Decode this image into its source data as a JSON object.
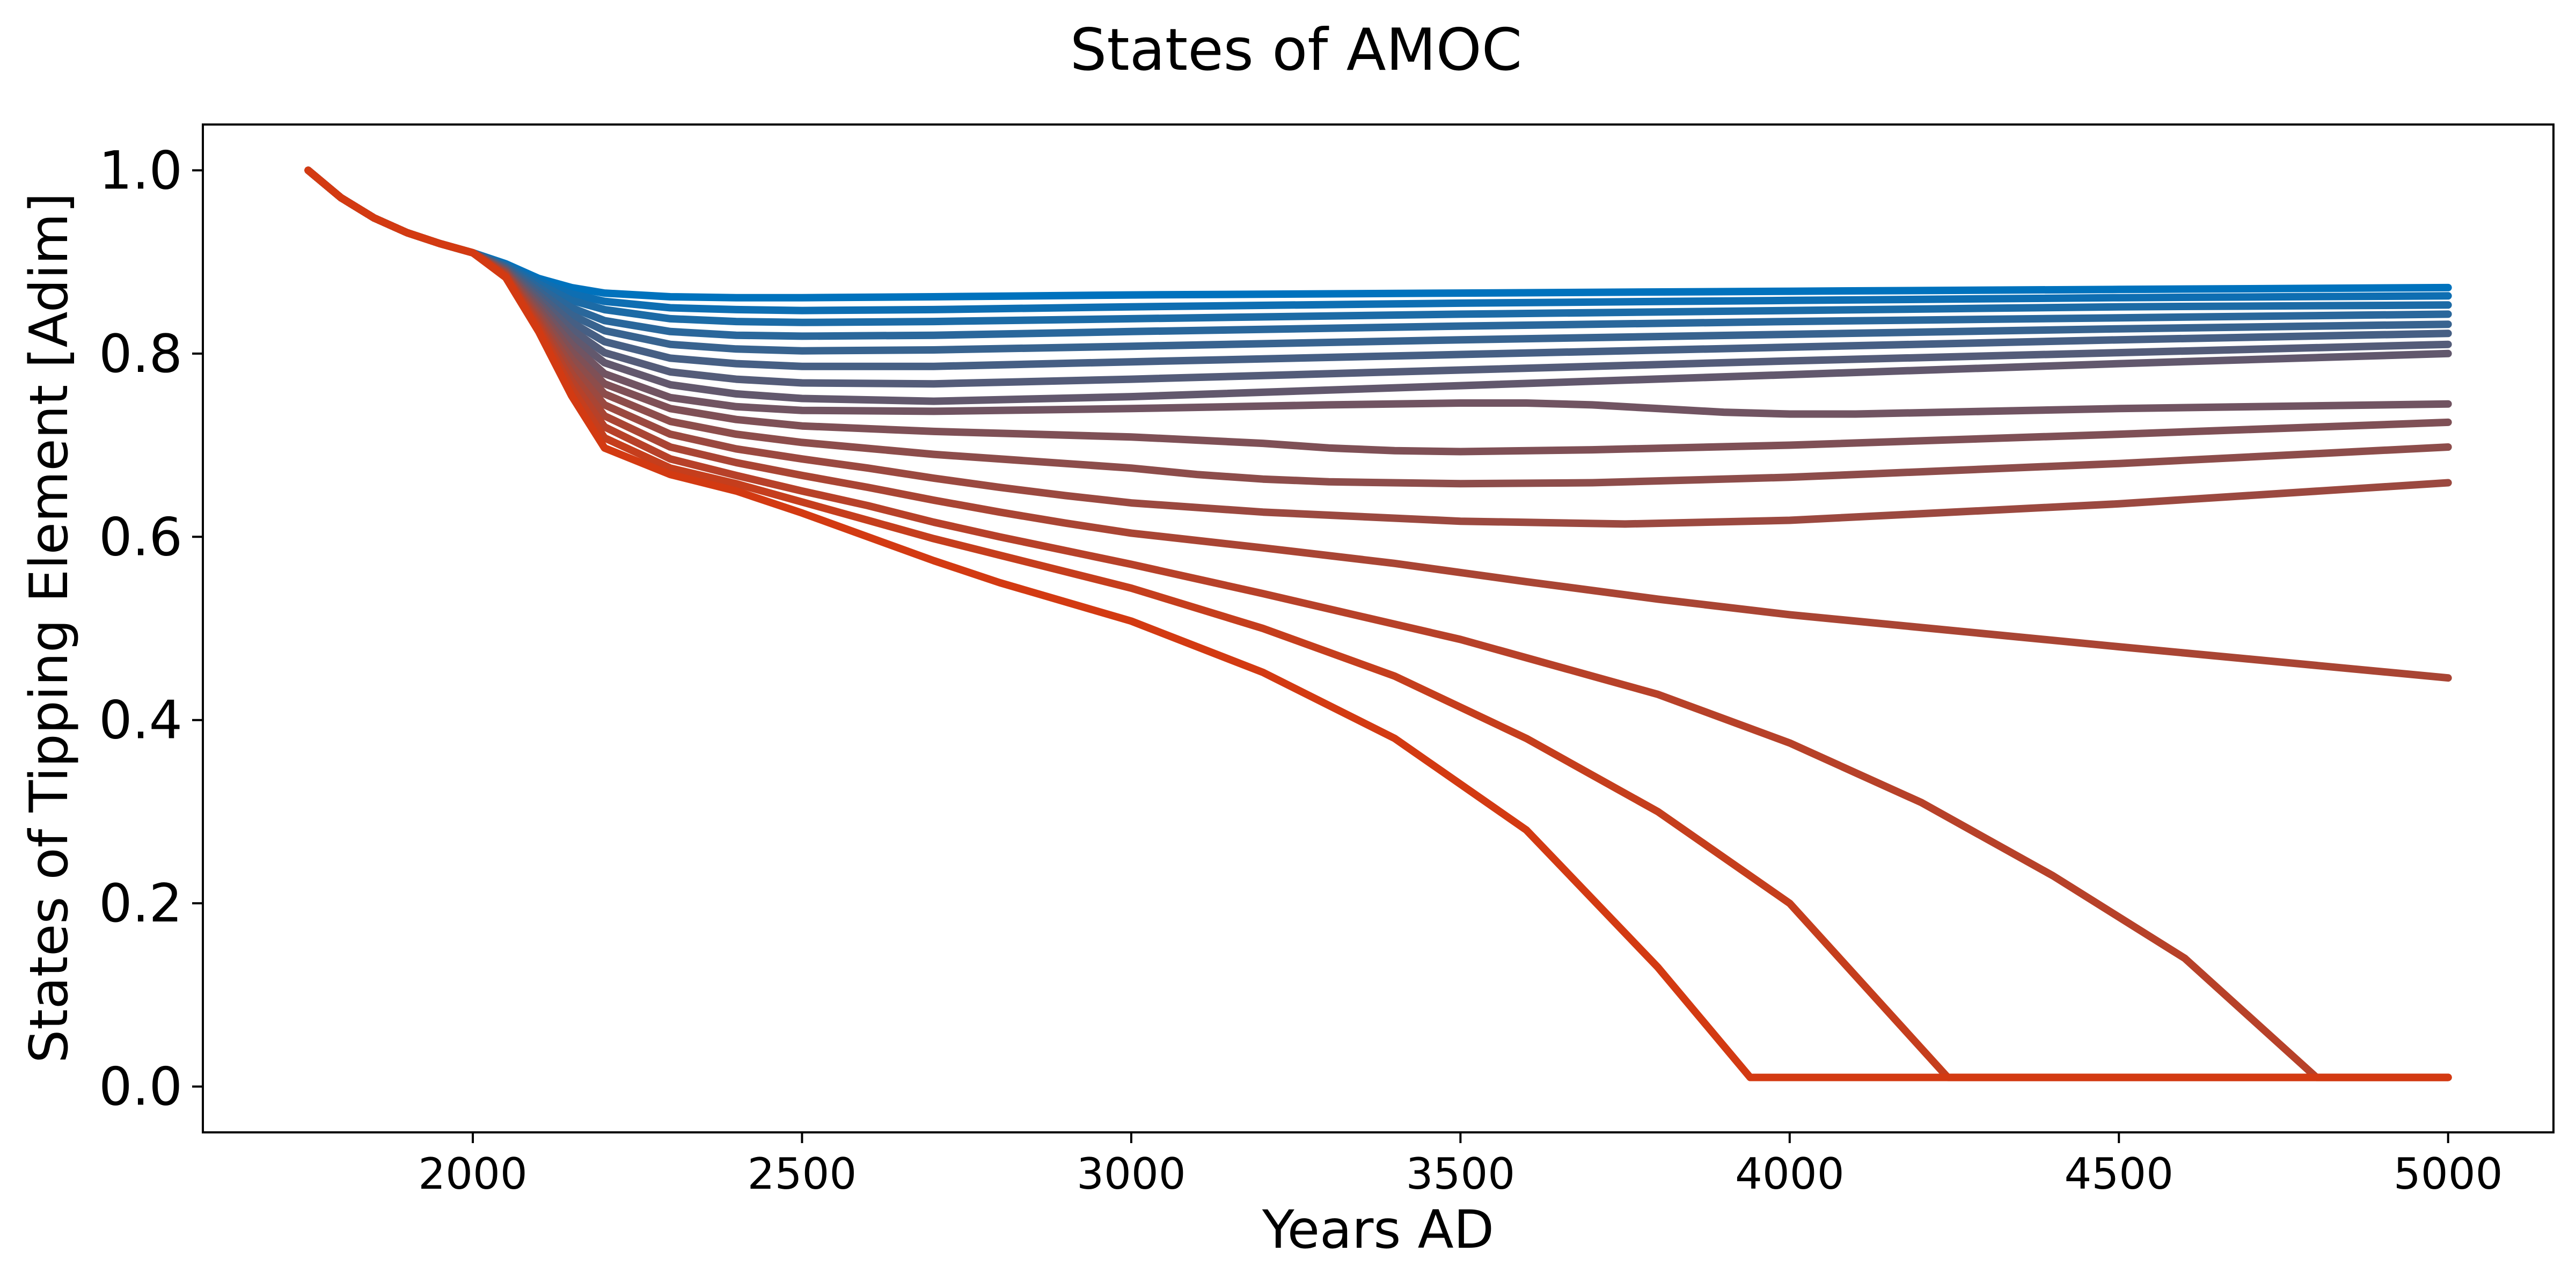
{
  "chart_data": {
    "type": "line",
    "title": "States of AMOC",
    "xlabel": "Years AD",
    "ylabel": "States of Tipping Element [Adim]",
    "xlim": [
      1590,
      5160
    ],
    "ylim": [
      -0.05,
      1.05
    ],
    "xticks": [
      2000,
      2500,
      3000,
      3500,
      4000,
      4500,
      5000
    ],
    "yticks": [
      0.0,
      0.2,
      0.4,
      0.6,
      0.8,
      1.0
    ],
    "ytick_labels": [
      "0.0",
      "0.2",
      "0.4",
      "0.6",
      "0.8",
      "1.0"
    ],
    "grid": false,
    "legend": "none",
    "color_start": "#0072BD",
    "color_end": "#D33A12",
    "series": [
      {
        "x": [
          1750,
          1800,
          1850,
          1900,
          1950,
          2000,
          2050,
          2100,
          2150,
          2200,
          2300,
          2400,
          2500,
          2700,
          3000,
          3500,
          4000,
          4500,
          5000
        ],
        "y": [
          1.0,
          0.97,
          0.948,
          0.932,
          0.92,
          0.91,
          0.898,
          0.882,
          0.872,
          0.866,
          0.862,
          0.861,
          0.861,
          0.862,
          0.864,
          0.866,
          0.868,
          0.87,
          0.872
        ]
      },
      {
        "x": [
          1750,
          1800,
          1850,
          1900,
          1950,
          2000,
          2050,
          2100,
          2150,
          2200,
          2300,
          2400,
          2500,
          2700,
          3000,
          3500,
          4000,
          4500,
          5000
        ],
        "y": [
          1.0,
          0.97,
          0.948,
          0.932,
          0.92,
          0.91,
          0.897,
          0.879,
          0.865,
          0.857,
          0.85,
          0.848,
          0.847,
          0.848,
          0.851,
          0.855,
          0.858,
          0.861,
          0.863
        ]
      },
      {
        "x": [
          1750,
          1800,
          1850,
          1900,
          1950,
          2000,
          2050,
          2100,
          2150,
          2200,
          2300,
          2400,
          2500,
          2700,
          3000,
          3500,
          4000,
          4500,
          5000
        ],
        "y": [
          1.0,
          0.97,
          0.948,
          0.932,
          0.92,
          0.91,
          0.896,
          0.876,
          0.858,
          0.848,
          0.838,
          0.835,
          0.834,
          0.835,
          0.838,
          0.843,
          0.847,
          0.851,
          0.853
        ]
      },
      {
        "x": [
          1750,
          1800,
          1850,
          1900,
          1950,
          2000,
          2050,
          2100,
          2150,
          2200,
          2300,
          2400,
          2500,
          2700,
          3000,
          3500,
          4000,
          4500,
          5000
        ],
        "y": [
          1.0,
          0.97,
          0.948,
          0.932,
          0.92,
          0.91,
          0.895,
          0.872,
          0.85,
          0.836,
          0.824,
          0.82,
          0.819,
          0.82,
          0.824,
          0.83,
          0.835,
          0.839,
          0.843
        ]
      },
      {
        "x": [
          1750,
          1800,
          1850,
          1900,
          1950,
          2000,
          2050,
          2100,
          2150,
          2200,
          2300,
          2400,
          2500,
          2700,
          3000,
          3500,
          4000,
          4500,
          5000
        ],
        "y": [
          1.0,
          0.97,
          0.948,
          0.932,
          0.92,
          0.91,
          0.894,
          0.868,
          0.842,
          0.825,
          0.81,
          0.805,
          0.803,
          0.804,
          0.808,
          0.815,
          0.821,
          0.827,
          0.832
        ]
      },
      {
        "x": [
          1750,
          1800,
          1850,
          1900,
          1950,
          2000,
          2050,
          2100,
          2150,
          2200,
          2300,
          2400,
          2500,
          2700,
          3000,
          3500,
          4000,
          4500,
          5000
        ],
        "y": [
          1.0,
          0.97,
          0.948,
          0.932,
          0.92,
          0.91,
          0.893,
          0.864,
          0.834,
          0.813,
          0.795,
          0.789,
          0.786,
          0.786,
          0.791,
          0.799,
          0.807,
          0.815,
          0.822
        ]
      },
      {
        "x": [
          1750,
          1800,
          1850,
          1900,
          1950,
          2000,
          2050,
          2100,
          2150,
          2200,
          2300,
          2400,
          2500,
          2700,
          3000,
          3500,
          4000,
          4500,
          5000
        ],
        "y": [
          1.0,
          0.97,
          0.948,
          0.932,
          0.92,
          0.91,
          0.892,
          0.86,
          0.826,
          0.801,
          0.78,
          0.772,
          0.768,
          0.767,
          0.772,
          0.782,
          0.792,
          0.801,
          0.81
        ]
      },
      {
        "x": [
          1750,
          1800,
          1850,
          1900,
          1950,
          2000,
          2050,
          2100,
          2150,
          2200,
          2300,
          2400,
          2500,
          2700,
          3000,
          3500,
          4000,
          4500,
          5000
        ],
        "y": [
          1.0,
          0.97,
          0.948,
          0.932,
          0.92,
          0.91,
          0.891,
          0.856,
          0.818,
          0.79,
          0.766,
          0.756,
          0.751,
          0.748,
          0.753,
          0.765,
          0.777,
          0.789,
          0.8
        ]
      },
      {
        "x": [
          1750,
          1800,
          1850,
          1900,
          1950,
          2000,
          2050,
          2100,
          2150,
          2200,
          2300,
          2400,
          2500,
          2700,
          3000,
          3300,
          3500,
          3600,
          3700,
          3800,
          3900,
          4000,
          4100,
          4300,
          4500,
          5000
        ],
        "y": [
          1.0,
          0.97,
          0.948,
          0.932,
          0.92,
          0.91,
          0.89,
          0.852,
          0.81,
          0.778,
          0.752,
          0.742,
          0.738,
          0.737,
          0.74,
          0.744,
          0.746,
          0.746,
          0.744,
          0.74,
          0.736,
          0.734,
          0.734,
          0.737,
          0.74,
          0.745
        ]
      },
      {
        "x": [
          1750,
          1800,
          1850,
          1900,
          1950,
          2000,
          2050,
          2100,
          2150,
          2200,
          2300,
          2400,
          2500,
          2700,
          3000,
          3200,
          3300,
          3400,
          3500,
          3700,
          4000,
          4500,
          5000
        ],
        "y": [
          1.0,
          0.97,
          0.948,
          0.932,
          0.92,
          0.91,
          0.889,
          0.848,
          0.802,
          0.767,
          0.74,
          0.728,
          0.721,
          0.715,
          0.709,
          0.702,
          0.697,
          0.694,
          0.693,
          0.695,
          0.7,
          0.712,
          0.725
        ]
      },
      {
        "x": [
          1750,
          1800,
          1850,
          1900,
          1950,
          2000,
          2050,
          2100,
          2150,
          2200,
          2300,
          2400,
          2500,
          2700,
          2900,
          3000,
          3100,
          3200,
          3300,
          3500,
          3700,
          4000,
          4500,
          5000
        ],
        "y": [
          1.0,
          0.97,
          0.948,
          0.932,
          0.92,
          0.91,
          0.888,
          0.844,
          0.794,
          0.756,
          0.726,
          0.712,
          0.703,
          0.69,
          0.68,
          0.675,
          0.668,
          0.663,
          0.66,
          0.658,
          0.659,
          0.665,
          0.68,
          0.698
        ]
      },
      {
        "x": [
          1750,
          1800,
          1850,
          1900,
          1950,
          2000,
          2050,
          2100,
          2150,
          2200,
          2300,
          2400,
          2500,
          2600,
          2700,
          2800,
          2900,
          3000,
          3200,
          3500,
          3750,
          4000,
          4500,
          5000
        ],
        "y": [
          1.0,
          0.97,
          0.948,
          0.932,
          0.92,
          0.91,
          0.887,
          0.84,
          0.786,
          0.744,
          0.712,
          0.696,
          0.685,
          0.675,
          0.664,
          0.654,
          0.645,
          0.637,
          0.627,
          0.617,
          0.614,
          0.618,
          0.636,
          0.659
        ]
      },
      {
        "x": [
          1750,
          1800,
          1850,
          1900,
          1950,
          2000,
          2050,
          2100,
          2150,
          2200,
          2300,
          2400,
          2500,
          2600,
          2700,
          2800,
          2900,
          3000,
          3200,
          3400,
          3600,
          3800,
          4000,
          4500,
          5000
        ],
        "y": [
          1.0,
          0.97,
          0.948,
          0.932,
          0.92,
          0.91,
          0.886,
          0.836,
          0.778,
          0.732,
          0.698,
          0.681,
          0.667,
          0.654,
          0.64,
          0.627,
          0.615,
          0.604,
          0.588,
          0.571,
          0.551,
          0.532,
          0.515,
          0.48,
          0.446
        ]
      },
      {
        "x": [
          1750,
          1800,
          1850,
          1900,
          1950,
          2000,
          2050,
          2100,
          2150,
          2200,
          2300,
          2400,
          2500,
          2600,
          2700,
          2800,
          3000,
          3200,
          3500,
          3800,
          4000,
          4200,
          4400,
          4600,
          4800,
          5000
        ],
        "y": [
          1.0,
          0.97,
          0.948,
          0.932,
          0.92,
          0.91,
          0.885,
          0.832,
          0.77,
          0.72,
          0.685,
          0.667,
          0.65,
          0.634,
          0.616,
          0.6,
          0.57,
          0.538,
          0.488,
          0.428,
          0.375,
          0.31,
          0.23,
          0.14,
          0.01,
          0.01
        ]
      },
      {
        "x": [
          1750,
          1800,
          1850,
          1900,
          1950,
          2000,
          2050,
          2100,
          2150,
          2200,
          2300,
          2400,
          2500,
          2600,
          2700,
          2800,
          3000,
          3200,
          3400,
          3600,
          3800,
          4000,
          4240,
          5000
        ],
        "y": [
          1.0,
          0.97,
          0.948,
          0.932,
          0.92,
          0.91,
          0.884,
          0.828,
          0.762,
          0.708,
          0.675,
          0.658,
          0.638,
          0.618,
          0.598,
          0.58,
          0.544,
          0.5,
          0.448,
          0.38,
          0.3,
          0.2,
          0.01,
          0.01
        ]
      },
      {
        "x": [
          1750,
          1800,
          1850,
          1900,
          1950,
          2000,
          2050,
          2100,
          2150,
          2200,
          2300,
          2400,
          2500,
          2600,
          2700,
          2800,
          3000,
          3200,
          3400,
          3600,
          3800,
          3940,
          5000
        ],
        "y": [
          1.0,
          0.97,
          0.948,
          0.932,
          0.92,
          0.91,
          0.883,
          0.824,
          0.754,
          0.697,
          0.668,
          0.65,
          0.626,
          0.6,
          0.574,
          0.55,
          0.508,
          0.452,
          0.38,
          0.28,
          0.13,
          0.01,
          0.01
        ]
      }
    ]
  }
}
